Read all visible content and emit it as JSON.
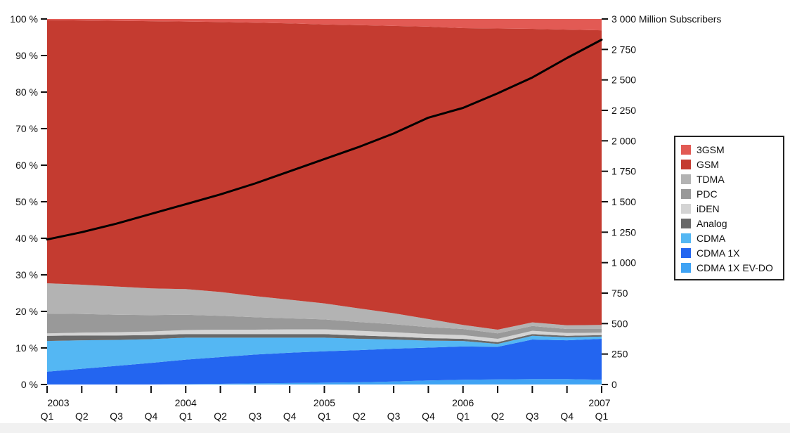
{
  "chart_data": {
    "type": "area",
    "stacked": true,
    "stack_unit": "percent_share",
    "title": "",
    "x_quarters": [
      "2003 Q1",
      "2003 Q2",
      "2003 Q3",
      "2003 Q4",
      "2004 Q1",
      "2004 Q2",
      "2004 Q3",
      "2004 Q4",
      "2005 Q1",
      "2005 Q2",
      "2005 Q3",
      "2005 Q4",
      "2006 Q1",
      "2006 Q2",
      "2006 Q3",
      "2006 Q4",
      "2007 Q1"
    ],
    "quarter_labels": [
      "Q1",
      "Q2",
      "Q3",
      "Q4",
      "Q1",
      "Q2",
      "Q3",
      "Q4",
      "Q1",
      "Q2",
      "Q3",
      "Q4",
      "Q1",
      "Q2",
      "Q3",
      "Q4",
      "Q1"
    ],
    "year_labels": [
      {
        "label": "2003",
        "index": 0
      },
      {
        "label": "2004",
        "index": 4
      },
      {
        "label": "2005",
        "index": 8
      },
      {
        "label": "2006",
        "index": 12
      },
      {
        "label": "2007",
        "index": 16
      }
    ],
    "left_axis": {
      "min": 0,
      "max": 100,
      "step": 10,
      "ticks": [
        "0 %",
        "10 %",
        "20 %",
        "30 %",
        "40 %",
        "50 %",
        "60 %",
        "70 %",
        "80 %",
        "90 %",
        "100 %"
      ]
    },
    "right_axis": {
      "min": 0,
      "max": 3000,
      "step": 250,
      "unit_label": "Million Subscribers",
      "ticks": [
        "0",
        "250",
        "500",
        "750",
        "1 000",
        "1 250",
        "1 500",
        "1 750",
        "2 000",
        "2 250",
        "2 500",
        "2 750",
        "3 000"
      ]
    },
    "series": [
      {
        "name": "CDMA 1X EV-DO",
        "color": "#3fa3f4",
        "values": [
          0,
          0,
          0,
          0,
          0.1,
          0.2,
          0.3,
          0.4,
          0.5,
          0.6,
          0.8,
          1.1,
          1.3,
          1.4,
          1.5,
          1.5,
          1.3
        ]
      },
      {
        "name": "CDMA 1X",
        "color": "#2365f0",
        "values": [
          3.5,
          4.3,
          5.1,
          5.9,
          6.7,
          7.3,
          7.9,
          8.3,
          8.6,
          8.8,
          9.0,
          9.0,
          9.1,
          8.9,
          10.8,
          10.6,
          11.2
        ]
      },
      {
        "name": "CDMA",
        "color": "#54b7f3",
        "values": [
          8.4,
          7.8,
          7.1,
          6.5,
          6.0,
          5.3,
          4.6,
          4.1,
          3.7,
          3.1,
          2.5,
          1.9,
          1.5,
          0.8,
          1.0,
          0.8,
          0.6
        ]
      },
      {
        "name": "Analog",
        "color": "#696969",
        "values": [
          1.4,
          1.3,
          1.2,
          1.1,
          1.0,
          1.0,
          1.0,
          1.0,
          1.0,
          0.9,
          0.8,
          0.7,
          0.6,
          0.5,
          0.5,
          0.4,
          0.4
        ]
      },
      {
        "name": "iDEN",
        "color": "#d4d4d4",
        "values": [
          0.7,
          0.8,
          0.9,
          1.0,
          1.1,
          1.2,
          1.2,
          1.3,
          1.3,
          1.3,
          1.2,
          1.1,
          1.0,
          0.9,
          0.9,
          0.8,
          0.7
        ]
      },
      {
        "name": "PDC",
        "color": "#999999",
        "values": [
          5.4,
          5.1,
          4.8,
          4.5,
          4.2,
          3.8,
          3.4,
          3.0,
          2.7,
          2.4,
          2.2,
          1.9,
          1.7,
          1.5,
          1.3,
          1.1,
          1.0
        ]
      },
      {
        "name": "TDMA",
        "color": "#b3b3b3",
        "values": [
          8.3,
          8.0,
          7.7,
          7.3,
          7.0,
          6.5,
          5.8,
          5.1,
          4.4,
          3.7,
          3.0,
          2.2,
          1.1,
          1.0,
          1.0,
          1.0,
          1.1
        ]
      },
      {
        "name": "GSM",
        "color": "#c43b30",
        "values": [
          72.0,
          72.3,
          72.7,
          73.1,
          73.2,
          73.9,
          74.8,
          75.6,
          76.3,
          77.5,
          78.6,
          80.0,
          81.2,
          82.4,
          80.3,
          80.9,
          80.6
        ]
      },
      {
        "name": "3GSM",
        "color": "#e25a54",
        "values": [
          0.3,
          0.4,
          0.5,
          0.6,
          0.7,
          0.8,
          1.0,
          1.2,
          1.5,
          1.7,
          1.9,
          2.1,
          2.5,
          2.6,
          2.7,
          2.9,
          3.1
        ]
      }
    ],
    "line_series": {
      "name": "Total Million Subscribers",
      "color": "#000000",
      "values": [
        1190,
        1250,
        1320,
        1400,
        1480,
        1560,
        1650,
        1750,
        1850,
        1950,
        2060,
        2190,
        2270,
        2390,
        2520,
        2680,
        2830
      ]
    },
    "legend": {
      "position": "right",
      "items": [
        {
          "label": "3GSM",
          "color": "#e25a54"
        },
        {
          "label": "GSM",
          "color": "#c43b30"
        },
        {
          "label": "TDMA",
          "color": "#b3b3b3"
        },
        {
          "label": "PDC",
          "color": "#999999"
        },
        {
          "label": "iDEN",
          "color": "#d4d4d4"
        },
        {
          "label": "Analog",
          "color": "#696969"
        },
        {
          "label": "CDMA",
          "color": "#54b7f3"
        },
        {
          "label": "CDMA 1X",
          "color": "#2365f0"
        },
        {
          "label": "CDMA 1X EV-DO",
          "color": "#3fa3f4"
        }
      ]
    }
  }
}
